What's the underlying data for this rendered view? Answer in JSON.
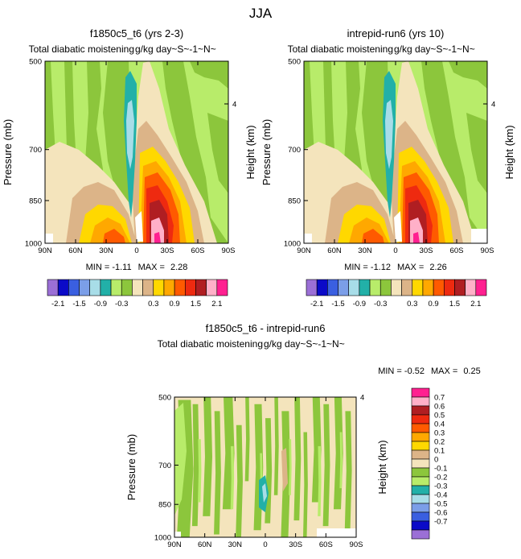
{
  "figure_title": "JJA",
  "chart_data": [
    {
      "type": "heatmap",
      "title": "f1850c5_t6 (yrs 2-3)",
      "subtitle": "Total diabatic moistening",
      "subtitle_right": "g/kg day~S~-1~N~",
      "ylabel": "Pressure (mb)",
      "ylabel_right": "Height (km)",
      "x_ticks": [
        "90N",
        "60N",
        "30N",
        "0",
        "30S",
        "60S",
        "90S"
      ],
      "y_ticks": [
        "500",
        "700",
        "850",
        "1000"
      ],
      "y_right_ticks": [
        "4"
      ],
      "min_label": "MIN = ",
      "min_value": "-1.11",
      "max_label": "MAX = ",
      "max_value": "2.28",
      "ylim": [
        1000,
        500
      ],
      "xlim": [
        90,
        -90
      ],
      "core_peak_value": 2.28
    },
    {
      "type": "heatmap",
      "title": "intrepid-run6 (yrs 10)",
      "subtitle": "Total diabatic moistening",
      "subtitle_right": "g/kg day~S~-1~N~",
      "ylabel": "Pressure (mb)",
      "ylabel_right": "Height (km)",
      "x_ticks": [
        "90N",
        "60N",
        "30N",
        "0",
        "30S",
        "60S",
        "90S"
      ],
      "y_ticks": [
        "500",
        "700",
        "850",
        "1000"
      ],
      "y_right_ticks": [
        "4"
      ],
      "min_label": "MIN = ",
      "min_value": "-1.12",
      "max_label": "MAX = ",
      "max_value": "2.26",
      "ylim": [
        1000,
        500
      ],
      "xlim": [
        90,
        -90
      ],
      "core_peak_value": 2.26
    },
    {
      "type": "heatmap",
      "title": "f1850c5_t6 - intrepid-run6",
      "subtitle": "Total diabatic moistening",
      "subtitle_right": "g/kg day~S~-1~N~",
      "ylabel": "Pressure (mb)",
      "ylabel_right": "Height (km)",
      "x_ticks": [
        "90N",
        "60N",
        "30N",
        "0",
        "30S",
        "60S",
        "90S"
      ],
      "y_ticks": [
        "500",
        "700",
        "850",
        "1000"
      ],
      "y_right_ticks": [
        "4"
      ],
      "min_label": "MIN = ",
      "min_value": "-0.52",
      "max_label": "MAX = ",
      "max_value": "0.25",
      "ylim": [
        1000,
        500
      ],
      "xlim": [
        90,
        -90
      ]
    }
  ],
  "colorbar_main": {
    "colors": [
      "#9b6fd6",
      "#0b0ac8",
      "#3a5fe0",
      "#7b9ee8",
      "#a8dde8",
      "#22b0a8",
      "#b8ec6a",
      "#8cc63c",
      "#f4e4bc",
      "#dcb488",
      "#ffd800",
      "#ffa800",
      "#ff5a00",
      "#ee2a10",
      "#b01e22",
      "#ffb0c8",
      "#ff2090"
    ],
    "labels": [
      "-2.1",
      "-1.5",
      "-0.9",
      "-0.3",
      "0.3",
      "0.9",
      "1.5",
      "2.1"
    ]
  },
  "colorbar_diff": {
    "colors": [
      "#9b6fd6",
      "#0b0ac8",
      "#3a5fe0",
      "#7b9ee8",
      "#a8dde8",
      "#22b0a8",
      "#b8ec6a",
      "#8cc63c",
      "#f4e4bc",
      "#dcb488",
      "#ffd800",
      "#ffa800",
      "#ff5a00",
      "#ee2a10",
      "#b01e22",
      "#ffb0c8",
      "#ff2090"
    ],
    "labels": [
      "-0.7",
      "-0.6",
      "-0.5",
      "-0.4",
      "-0.3",
      "-0.2",
      "-0.1",
      "0",
      "0.1",
      "0.2",
      "0.3",
      "0.4",
      "0.5",
      "0.6",
      "0.7"
    ]
  },
  "fill_colors": {
    "light_green": "#b8ec6a",
    "dark_green": "#8cc63c",
    "cream": "#f4e4bc",
    "tan": "#dcb488",
    "teal": "#22b0a8",
    "light_cyan": "#a8dde8",
    "light_blue": "#7b9ee8",
    "yellow": "#ffd800",
    "orange": "#ffa800",
    "dark_orange": "#ff5a00",
    "red": "#ee2a10",
    "dark_red": "#b01e22",
    "pink": "#ffb0c8",
    "magenta": "#ff2090",
    "white": "#ffffff",
    "black": "#000000"
  }
}
